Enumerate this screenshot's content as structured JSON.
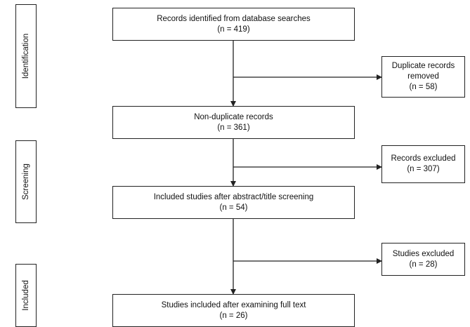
{
  "stages": [
    {
      "id": "identification",
      "label": "Identification"
    },
    {
      "id": "screening",
      "label": "Screening"
    },
    {
      "id": "included",
      "label": "Included"
    }
  ],
  "main_boxes": [
    {
      "id": "records-identified",
      "title": "Records identified from database searches",
      "count": "(n = 419)"
    },
    {
      "id": "non-duplicate",
      "title": "Non-duplicate records",
      "count": "(n = 361)"
    },
    {
      "id": "included-after-screening",
      "title": "Included studies after abstract/title screening",
      "count": "(n = 54)"
    },
    {
      "id": "included-full-text",
      "title": "Studies included after examining full text",
      "count": "(n = 26)"
    }
  ],
  "side_boxes": [
    {
      "id": "duplicates-removed",
      "title_line1": "Duplicate records",
      "title_line2": "removed",
      "count": "(n = 58)"
    },
    {
      "id": "records-excluded",
      "title_line1": "Records excluded",
      "count": "(n = 307)"
    },
    {
      "id": "studies-excluded",
      "title_line1": "Studies excluded",
      "count": "(n = 28)"
    }
  ]
}
